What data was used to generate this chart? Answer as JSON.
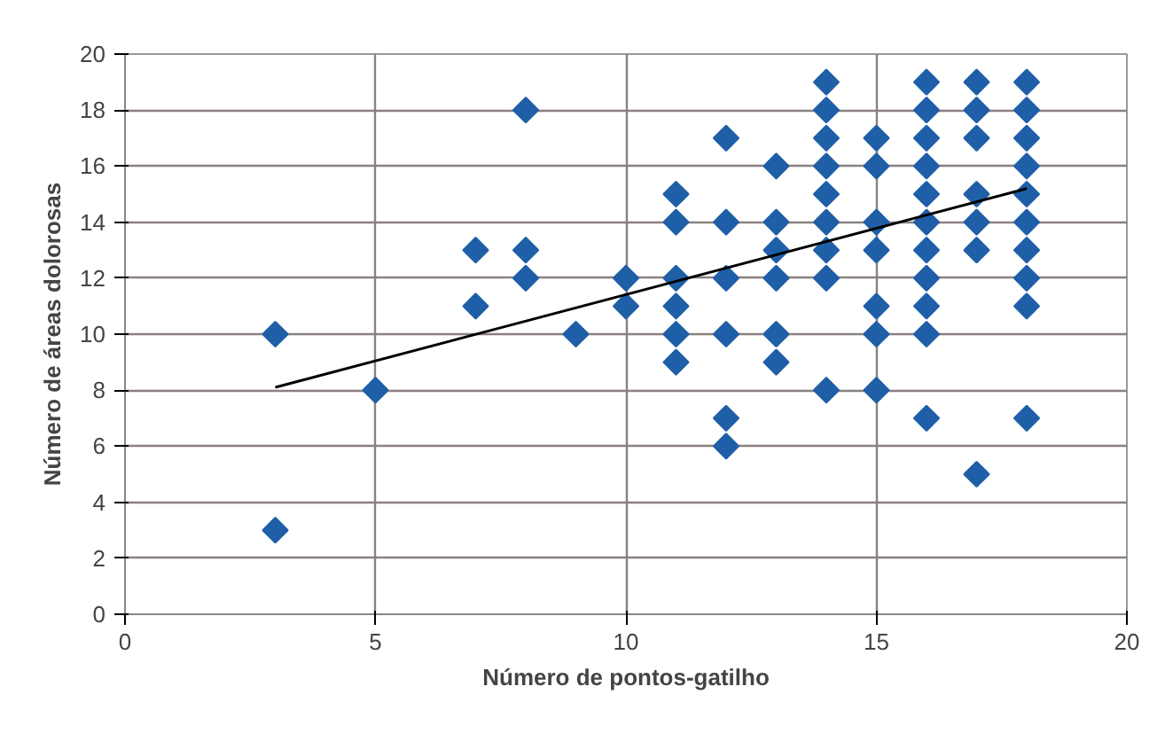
{
  "chart_data": {
    "type": "scatter",
    "xlabel": "Número de pontos-gatilho",
    "ylabel": "Número de áreas dolorosas",
    "xlim": [
      0,
      20
    ],
    "ylim": [
      0,
      20
    ],
    "xticks": [
      0,
      5,
      10,
      15,
      20
    ],
    "yticks": [
      0,
      2,
      4,
      6,
      8,
      10,
      12,
      14,
      16,
      18,
      20
    ],
    "grid": true,
    "series": [
      {
        "color": "#1f5fa8",
        "marker": "diamond",
        "x": [
          3,
          3,
          5,
          7,
          7,
          8,
          8,
          8,
          9,
          10,
          10,
          11,
          11,
          11,
          11,
          11,
          11,
          12,
          12,
          12,
          12,
          12,
          12,
          13,
          13,
          13,
          13,
          13,
          13,
          14,
          14,
          14,
          14,
          14,
          14,
          14,
          14,
          14,
          15,
          15,
          15,
          15,
          15,
          15,
          15,
          16,
          16,
          16,
          16,
          16,
          16,
          16,
          16,
          16,
          16,
          16,
          17,
          17,
          17,
          17,
          17,
          17,
          17,
          18,
          18,
          18,
          18,
          18,
          18,
          18,
          18,
          18,
          18
        ],
        "values": [
          10,
          3,
          8,
          13,
          11,
          18,
          13,
          12,
          10,
          12,
          11,
          15,
          14,
          12,
          11,
          10,
          9,
          17,
          14,
          12,
          10,
          7,
          6,
          16,
          14,
          13,
          12,
          10,
          9,
          19,
          18,
          17,
          16,
          15,
          14,
          13,
          12,
          8,
          17,
          16,
          14,
          13,
          11,
          10,
          8,
          19,
          18,
          17,
          16,
          15,
          14,
          13,
          12,
          11,
          10,
          7,
          19,
          18,
          17,
          15,
          14,
          13,
          5,
          19,
          18,
          17,
          16,
          15,
          14,
          13,
          12,
          11,
          7
        ]
      },
      {
        "color": "#000000",
        "type": "line",
        "line_style": "solid",
        "x": [
          3,
          18
        ],
        "values": [
          8.1,
          15.2
        ]
      }
    ]
  }
}
